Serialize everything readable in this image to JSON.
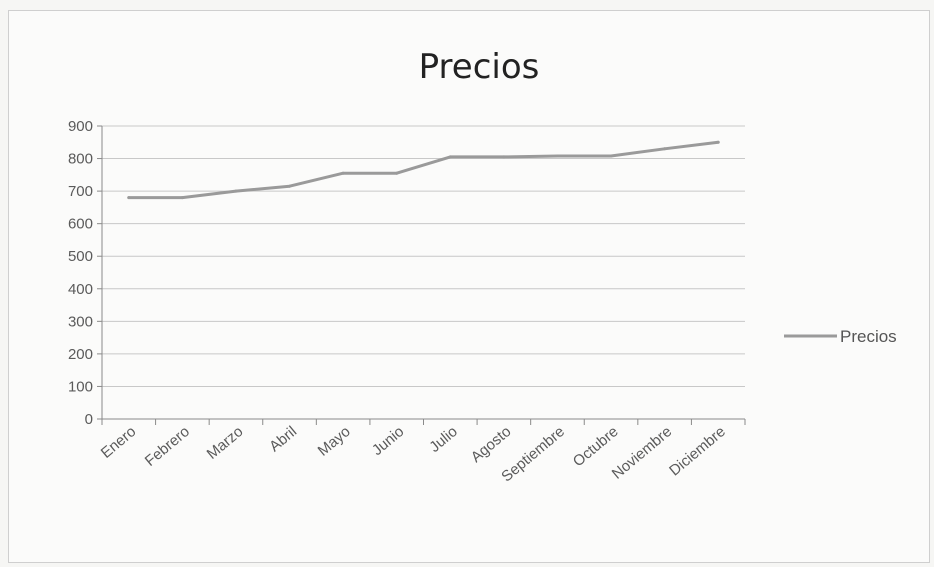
{
  "chart_data": {
    "type": "line",
    "title": "Precios",
    "categories": [
      "Enero",
      "Febrero",
      "Marzo",
      "Abril",
      "Mayo",
      "Junio",
      "Julio",
      "Agosto",
      "Septiembre",
      "Octubre",
      "Noviembre",
      "Diciembre"
    ],
    "series": [
      {
        "name": "Precios",
        "values": [
          680,
          680,
          700,
          715,
          755,
          755,
          805,
          805,
          808,
          808,
          830,
          850
        ]
      }
    ],
    "xlabel": "",
    "ylabel": "",
    "ylim": [
      0,
      900
    ],
    "yticks": [
      0,
      100,
      200,
      300,
      400,
      500,
      600,
      700,
      800,
      900
    ],
    "grid": true,
    "legend_position": "right",
    "line_color": "#9a9a9a"
  }
}
